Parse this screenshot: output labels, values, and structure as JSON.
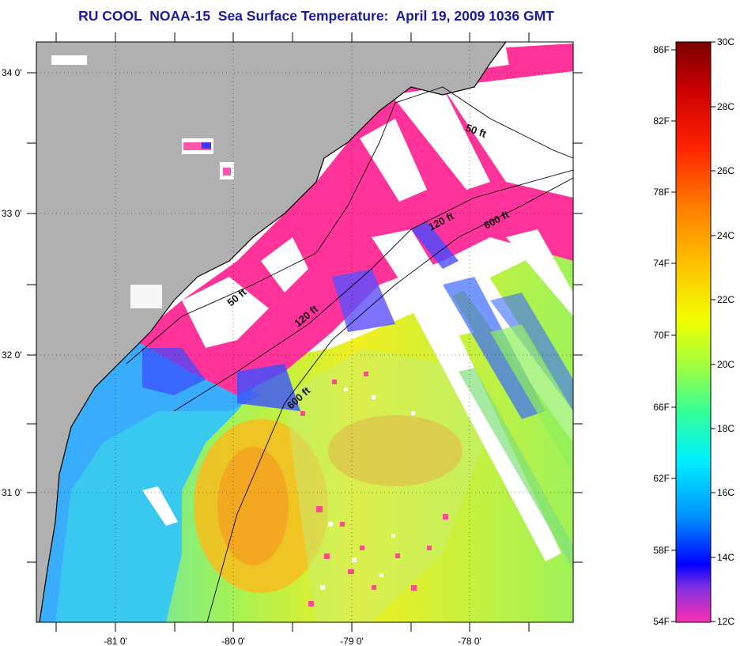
{
  "title": "RU COOL  NOAA-15  Sea Surface Temperature:  April 19, 2009 1036 GMT",
  "map": {
    "lat_labels": [
      "34 0'",
      "33 0'",
      "32 0'",
      "31 0'"
    ],
    "lon_labels": [
      "-81 0'",
      "-80 0'",
      "-79 0'",
      "-78 0'"
    ],
    "contour_labels": [
      "50 ft",
      "120 ft",
      "600 ft",
      "50 ft",
      "120 ft",
      "600 ft"
    ],
    "colors": {
      "land": "#b0b0b0",
      "cloud": "#ffffff",
      "cold_magenta": "#ff3399",
      "cool_blue": "#3a6bff",
      "cyan": "#33ddee",
      "green": "#8ef05a",
      "yellow": "#f0f020",
      "orange": "#f5a020"
    }
  },
  "colorbar": {
    "fahrenheit_labels": [
      "86F",
      "82F",
      "78F",
      "74F",
      "70F",
      "66F",
      "62F",
      "58F",
      "54F"
    ],
    "celsius_labels": [
      "30C",
      "28C",
      "26C",
      "24C",
      "22C",
      "20C",
      "18C",
      "16C",
      "14C",
      "12C"
    ],
    "range_f": [
      54,
      86
    ],
    "range_c": [
      12,
      30
    ]
  }
}
